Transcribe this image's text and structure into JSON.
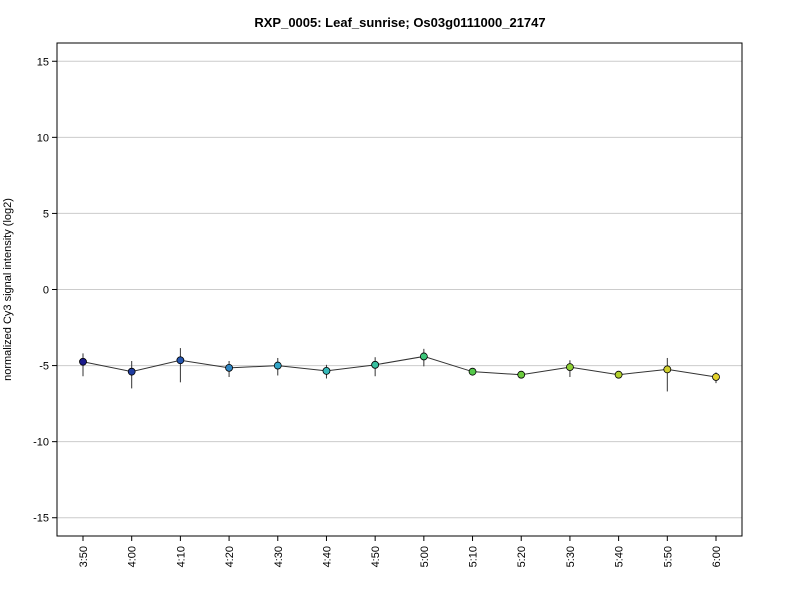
{
  "chart_data": {
    "type": "line",
    "title": "RXP_0005: Leaf_sunrise; Os03g0111000_21747",
    "xlabel": "",
    "ylabel": "normalized Cy3 signal intensity (log2)",
    "ylim": [
      -16.2,
      16.2
    ],
    "yticks": [
      -15,
      -10,
      -5,
      0,
      5,
      10,
      15
    ],
    "grid": true,
    "categories": [
      "3:50",
      "4:00",
      "4:10",
      "4:20",
      "4:30",
      "4:40",
      "4:50",
      "5:00",
      "5:10",
      "5:20",
      "5:30",
      "5:40",
      "5:50",
      "6:00"
    ],
    "series": [
      {
        "values": [
          -4.75,
          -5.4,
          -4.65,
          -5.15,
          -5.0,
          -5.35,
          -4.95,
          -4.4,
          -5.4,
          -5.6,
          -5.1,
          -5.6,
          -5.25,
          -5.75
        ],
        "err_low": [
          -5.7,
          -6.5,
          -6.1,
          -5.75,
          -5.65,
          -5.85,
          -5.7,
          -5.05,
          -5.5,
          -5.75,
          -5.75,
          -5.7,
          -6.7,
          -6.15
        ],
        "err_high": [
          -4.2,
          -4.7,
          -3.85,
          -4.7,
          -4.5,
          -4.95,
          -4.45,
          -3.9,
          -5.25,
          -5.5,
          -4.65,
          -5.5,
          -4.5,
          -5.45
        ],
        "colors": [
          "#1a1a8c",
          "#1f3ca0",
          "#2455b0",
          "#2f86c4",
          "#33a6c8",
          "#35b8b8",
          "#38c0a0",
          "#3dc67a",
          "#55c94a",
          "#6ccb3e",
          "#8fd035",
          "#b3d22e",
          "#d0cf2c",
          "#e3d22c"
        ]
      }
    ]
  }
}
